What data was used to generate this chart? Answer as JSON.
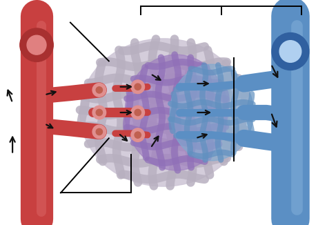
{
  "bg_color": "#ffffff",
  "artery_color_main": "#c84040",
  "artery_color_light": "#e07070",
  "vein_color_main": "#5b8fc4",
  "vein_color_light": "#90bce0",
  "cap_mesh_color": "#d0c8d8",
  "cap_mesh_edge": "#b8b0c0",
  "cap_purple": "#a080c0",
  "cap_blue": "#80aad0",
  "sphincter_color": "#e09090",
  "arrow_color": "#111111",
  "line_color": "#000000",
  "figsize": [
    4.74,
    3.26
  ],
  "dpi": 100
}
